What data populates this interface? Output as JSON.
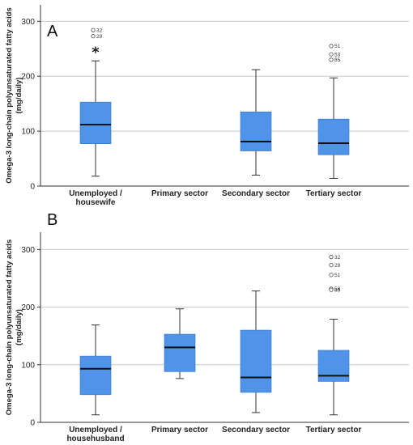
{
  "chart_data": [
    {
      "type": "boxplot",
      "panel": "A",
      "ylabel_line1": "Omega-3 long-chain polyunsaturated fatty acids",
      "ylabel_line2": "(mg/daily)",
      "ylim": [
        0,
        330
      ],
      "yticks": [
        0,
        100,
        200,
        300
      ],
      "grid": true,
      "box_color": "#4f94e8",
      "categories": [
        {
          "label": "Unemployed /",
          "label2": "housewife"
        },
        {
          "label": "Primary sector",
          "label2": ""
        },
        {
          "label": "Secondary sector",
          "label2": ""
        },
        {
          "label": "Tertiary sector",
          "label2": ""
        }
      ],
      "boxes": [
        {
          "min": 18,
          "q1": 77,
          "median": 112,
          "q3": 153,
          "max": 228,
          "outliers": [
            {
              "value": 284,
              "label": "32"
            },
            {
              "value": 273,
              "label": "29"
            }
          ],
          "extreme": [
            {
              "value": 248,
              "symbol": "*"
            }
          ]
        },
        null,
        {
          "min": 20,
          "q1": 64,
          "median": 81,
          "q3": 135,
          "max": 212,
          "outliers": [],
          "extreme": []
        },
        {
          "min": 14,
          "q1": 57,
          "median": 78,
          "q3": 122,
          "max": 197,
          "outliers": [
            {
              "value": 255,
              "label": "51"
            },
            {
              "value": 240,
              "label": "53"
            },
            {
              "value": 230,
              "label": "85"
            }
          ],
          "extreme": []
        }
      ]
    },
    {
      "type": "boxplot",
      "panel": "B",
      "ylabel_line1": "Omega-3 long-chain polyunsaturated fatty acids",
      "ylabel_line2": "(mg/daily)",
      "ylim": [
        0,
        330
      ],
      "yticks": [
        0,
        100,
        200,
        300
      ],
      "grid": true,
      "box_color": "#4f94e8",
      "categories": [
        {
          "label": "Unemployed /",
          "label2": "househusband"
        },
        {
          "label": "Primary sector",
          "label2": ""
        },
        {
          "label": "Secondary sector",
          "label2": ""
        },
        {
          "label": "Tertiary sector",
          "label2": ""
        }
      ],
      "boxes": [
        {
          "min": 13,
          "q1": 48,
          "median": 93,
          "q3": 115,
          "max": 169,
          "outliers": [],
          "extreme": []
        },
        {
          "min": 76,
          "q1": 88,
          "median": 130,
          "q3": 153,
          "max": 197,
          "outliers": [],
          "extreme": []
        },
        {
          "min": 17,
          "q1": 52,
          "median": 78,
          "q3": 160,
          "max": 228,
          "outliers": [],
          "extreme": []
        },
        {
          "min": 13,
          "q1": 71,
          "median": 81,
          "q3": 125,
          "max": 179,
          "outliers": [
            {
              "value": 287,
              "label": "32"
            },
            {
              "value": 273,
              "label": "29"
            },
            {
              "value": 256,
              "label": "51"
            },
            {
              "value": 232,
              "label": "53"
            },
            {
              "value": 230,
              "label": "85"
            }
          ],
          "extreme": []
        }
      ]
    }
  ]
}
